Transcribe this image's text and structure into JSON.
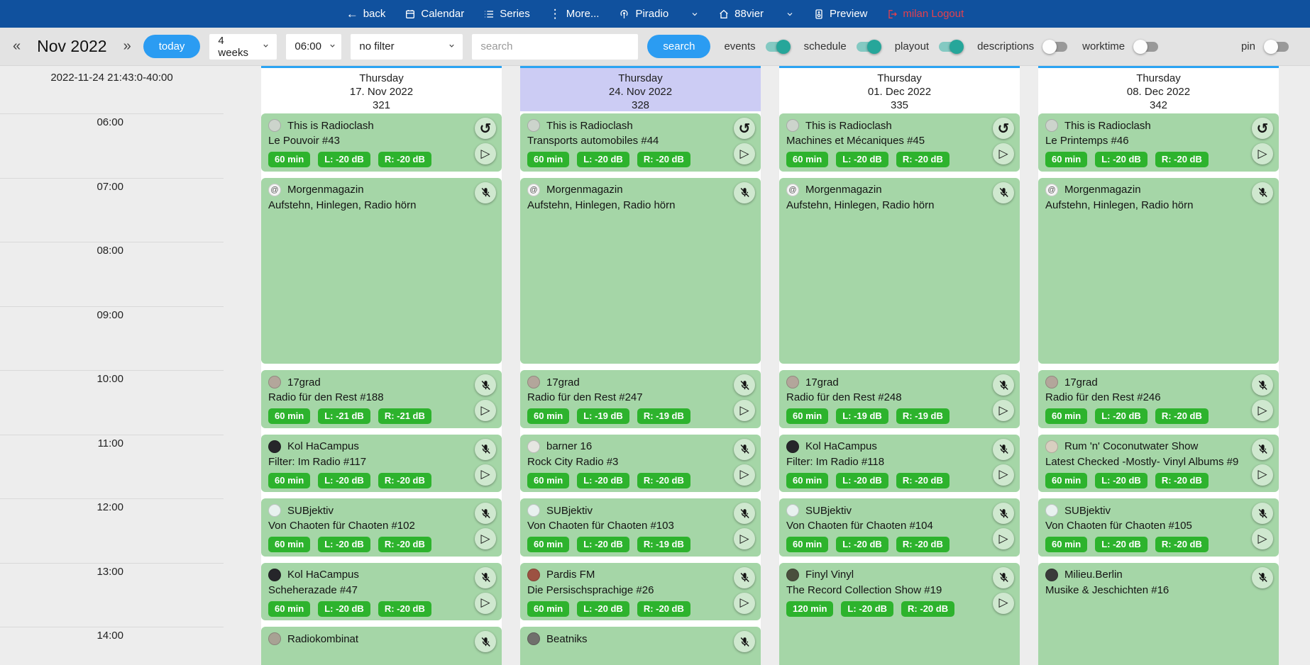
{
  "colors": {
    "navbar_blue": "#10519e",
    "accent_blue": "#2b9cf2",
    "column_topline_blue": "#2ba3f3",
    "card_green": "#a5d6a7",
    "badge_green": "#2db32d",
    "header_highlight": "#ccccf4",
    "logout_red": "#e4404e",
    "toggle_teal": "#26a69a"
  },
  "navbar": {
    "back": "back",
    "calendar": "Calendar",
    "series": "Series",
    "more": "More...",
    "station": "Piradio",
    "channel": "88vier",
    "preview": "Preview",
    "logout": "milan Logout"
  },
  "toolbar": {
    "prev": "«",
    "month": "Nov 2022",
    "next": "»",
    "today": "today",
    "range": "4 weeks",
    "start_time": "06:00",
    "filter": "no filter",
    "search_placeholder": "search",
    "search_button": "search",
    "toggles": [
      {
        "label": "events",
        "on": true
      },
      {
        "label": "schedule",
        "on": true
      },
      {
        "label": "playout",
        "on": true
      },
      {
        "label": "descriptions",
        "on": false
      },
      {
        "label": "worktime",
        "on": false
      },
      {
        "label": "pin",
        "on": false
      }
    ]
  },
  "calendar": {
    "now_label": "2022-11-24 21:43:0-40:00",
    "times": [
      "06:00",
      "07:00",
      "08:00",
      "09:00",
      "10:00",
      "11:00",
      "12:00",
      "13:00",
      "14:00"
    ],
    "columns": [
      {
        "day": "Thursday",
        "date": "17. Nov 2022",
        "daynum": "321",
        "highlight": false,
        "events": [
          {
            "show": "This is Radioclash",
            "episode": "Le Pouvoir #43",
            "badges": [
              "60 min",
              "L: -20 dB",
              "R: -20 dB"
            ],
            "start": 6,
            "span": 1,
            "icon": "replay",
            "play": true,
            "avatar": "#ccd4cc"
          },
          {
            "show": "Morgenmagazin",
            "episode": "Aufstehn, Hinlegen, Radio hörn",
            "badges": [],
            "start": 7,
            "span": 3,
            "icon": "mic-off",
            "play": false,
            "avatar": "#f4f4f4",
            "avatar_glyph": "@"
          },
          {
            "show": "17grad",
            "episode": "Radio für den Rest #188",
            "badges": [
              "60 min",
              "L: -21 dB",
              "R: -21 dB"
            ],
            "start": 10,
            "span": 1,
            "icon": "mic-off",
            "play": true,
            "avatar": "#b3a69b"
          },
          {
            "show": "Kol HaCampus",
            "episode": "Filter: Im Radio #117",
            "badges": [
              "60 min",
              "L: -20 dB",
              "R: -20 dB"
            ],
            "start": 11,
            "span": 1,
            "icon": "mic-off",
            "play": true,
            "avatar": "#26262a"
          },
          {
            "show": "SUBjektiv",
            "episode": "Von Chaoten für Chaoten #102",
            "badges": [
              "60 min",
              "L: -20 dB",
              "R: -20 dB"
            ],
            "start": 12,
            "span": 1,
            "icon": "mic-off",
            "play": true,
            "avatar": "#e8f1ef"
          },
          {
            "show": "Kol HaCampus",
            "episode": "Scheherazade #47",
            "badges": [
              "60 min",
              "L: -20 dB",
              "R: -20 dB"
            ],
            "start": 13,
            "span": 1,
            "icon": "mic-off",
            "play": true,
            "avatar": "#26262a"
          },
          {
            "show": "Radiokombinat",
            "episode": "",
            "badges": [],
            "start": 14,
            "span": 1,
            "icon": "mic-off",
            "play": false,
            "avatar": "#a8a294"
          }
        ]
      },
      {
        "day": "Thursday",
        "date": "24. Nov 2022",
        "daynum": "328",
        "highlight": true,
        "events": [
          {
            "show": "This is Radioclash",
            "episode": "Transports automobiles #44",
            "badges": [
              "60 min",
              "L: -20 dB",
              "R: -20 dB"
            ],
            "start": 6,
            "span": 1,
            "icon": "replay",
            "play": true,
            "avatar": "#ccd4cc"
          },
          {
            "show": "Morgenmagazin",
            "episode": "Aufstehn, Hinlegen, Radio hörn",
            "badges": [],
            "start": 7,
            "span": 3,
            "icon": "mic-off",
            "play": false,
            "avatar": "#f4f4f4",
            "avatar_glyph": "@"
          },
          {
            "show": "17grad",
            "episode": "Radio für den Rest #247",
            "badges": [
              "60 min",
              "L: -19 dB",
              "R: -19 dB"
            ],
            "start": 10,
            "span": 1,
            "icon": "mic-off",
            "play": true,
            "avatar": "#b3a69b"
          },
          {
            "show": "barner 16",
            "episode": "Rock City Radio #3",
            "badges": [
              "60 min",
              "L: -20 dB",
              "R: -20 dB"
            ],
            "start": 11,
            "span": 1,
            "icon": "mic-off",
            "play": true,
            "avatar": "#e6e6e2"
          },
          {
            "show": "SUBjektiv",
            "episode": "Von Chaoten für Chaoten #103",
            "badges": [
              "60 min",
              "L: -20 dB",
              "R: -19 dB"
            ],
            "start": 12,
            "span": 1,
            "icon": "mic-off",
            "play": true,
            "avatar": "#e8f1ef"
          },
          {
            "show": "Pardis FM",
            "episode": "Die Persischsprachige #26",
            "badges": [
              "60 min",
              "L: -20 dB",
              "R: -20 dB"
            ],
            "start": 13,
            "span": 1,
            "icon": "mic-off",
            "play": true,
            "avatar": "#9c5242"
          },
          {
            "show": "Beatniks",
            "episode": "",
            "badges": [],
            "start": 14,
            "span": 1,
            "icon": "mic-off",
            "play": false,
            "avatar": "#70706c"
          }
        ]
      },
      {
        "day": "Thursday",
        "date": "01. Dec 2022",
        "daynum": "335",
        "highlight": false,
        "events": [
          {
            "show": "This is Radioclash",
            "episode": "Machines et Mécaniques #45",
            "badges": [
              "60 min",
              "L: -20 dB",
              "R: -20 dB"
            ],
            "start": 6,
            "span": 1,
            "icon": "replay",
            "play": true,
            "avatar": "#ccd4cc"
          },
          {
            "show": "Morgenmagazin",
            "episode": "Aufstehn, Hinlegen, Radio hörn",
            "badges": [],
            "start": 7,
            "span": 3,
            "icon": "mic-off",
            "play": false,
            "avatar": "#f4f4f4",
            "avatar_glyph": "@"
          },
          {
            "show": "17grad",
            "episode": "Radio für den Rest #248",
            "badges": [
              "60 min",
              "L: -19 dB",
              "R: -19 dB"
            ],
            "start": 10,
            "span": 1,
            "icon": "mic-off",
            "play": true,
            "avatar": "#b3a69b"
          },
          {
            "show": "Kol HaCampus",
            "episode": "Filter: Im Radio #118",
            "badges": [
              "60 min",
              "L: -20 dB",
              "R: -20 dB"
            ],
            "start": 11,
            "span": 1,
            "icon": "mic-off",
            "play": true,
            "avatar": "#26262a"
          },
          {
            "show": "SUBjektiv",
            "episode": "Von Chaoten für Chaoten #104",
            "badges": [
              "60 min",
              "L: -20 dB",
              "R: -20 dB"
            ],
            "start": 12,
            "span": 1,
            "icon": "mic-off",
            "play": true,
            "avatar": "#e8f1ef"
          },
          {
            "show": "Finyl Vinyl",
            "episode": "The Record Collection Show #19",
            "badges": [
              "120 min",
              "L: -20 dB",
              "R: -20 dB"
            ],
            "start": 13,
            "span": 2,
            "icon": "mic-off",
            "play": true,
            "avatar": "#4a4f3d"
          }
        ]
      },
      {
        "day": "Thursday",
        "date": "08. Dec 2022",
        "daynum": "342",
        "highlight": false,
        "events": [
          {
            "show": "This is Radioclash",
            "episode": "Le Printemps #46",
            "badges": [
              "60 min",
              "L: -20 dB",
              "R: -20 dB"
            ],
            "start": 6,
            "span": 1,
            "icon": "replay",
            "play": true,
            "avatar": "#ccd4cc"
          },
          {
            "show": "Morgenmagazin",
            "episode": "Aufstehn, Hinlegen, Radio hörn",
            "badges": [],
            "start": 7,
            "span": 3,
            "icon": "mic-off",
            "play": false,
            "avatar": "#f4f4f4",
            "avatar_glyph": "@"
          },
          {
            "show": "17grad",
            "episode": "Radio für den Rest #246",
            "badges": [
              "60 min",
              "L: -20 dB",
              "R: -20 dB"
            ],
            "start": 10,
            "span": 1,
            "icon": "mic-off",
            "play": true,
            "avatar": "#b3a69b"
          },
          {
            "show": "Rum 'n' Coconutwater Show",
            "episode": "Latest Checked -Mostly- Vinyl Albums #9",
            "badges": [
              "60 min",
              "L: -20 dB",
              "R: -20 dB"
            ],
            "start": 11,
            "span": 1,
            "icon": "mic-off",
            "play": true,
            "avatar": "#d8cfc0"
          },
          {
            "show": "SUBjektiv",
            "episode": "Von Chaoten für Chaoten #105",
            "badges": [
              "60 min",
              "L: -20 dB",
              "R: -20 dB"
            ],
            "start": 12,
            "span": 1,
            "icon": "mic-off",
            "play": true,
            "avatar": "#e8f1ef"
          },
          {
            "show": "Milieu.Berlin",
            "episode": "Musike & Jeschichten #16",
            "badges": [],
            "start": 13,
            "span": 2,
            "icon": "mic-off",
            "play": false,
            "avatar": "#3a3a3a"
          }
        ]
      }
    ]
  }
}
